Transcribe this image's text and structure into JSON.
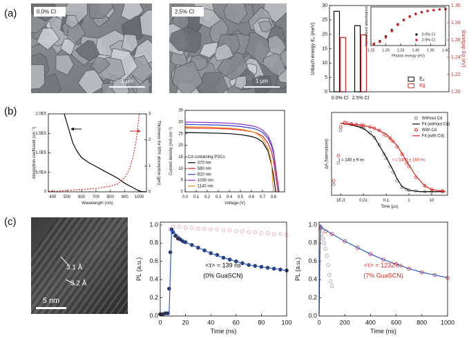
{
  "panel_labels": [
    "(a)",
    "(b)",
    "(c)"
  ],
  "images": [
    {
      "label": "0.0% Cl",
      "scale": "1 μm"
    },
    {
      "label": "2.5% Cl",
      "scale": "1 μm"
    },
    {
      "labels": [
        "3.1 Å",
        "3.2 Å"
      ],
      "scale": "5 nm"
    }
  ],
  "chart_data": [
    {
      "type": "bar",
      "categories": [
        "0.0% Cl",
        "2.5% Cl"
      ],
      "ylabel": "Urbach energy Eᵤ (meV)",
      "y2label": "Bandgap Eg (eV)",
      "y2_color": "#e0201b",
      "ylim": [
        0,
        30
      ],
      "yticks": [
        0,
        5,
        10,
        15,
        20,
        25,
        30
      ],
      "y2lim": [
        1.2,
        1.3
      ],
      "y2ticks": [
        {
          "value": 1.2,
          "label": "1.20"
        },
        1.22,
        1.24,
        1.26,
        1.28,
        {
          "value": 1.3,
          "label": "1.30"
        }
      ],
      "legend": "lower right",
      "series": [
        {
          "name": "Eᵤ",
          "color": "#000000",
          "mode": "bars",
          "values": [
            28,
            23
          ]
        },
        {
          "name": "Eg",
          "color": "#e0201b",
          "mode": "bars",
          "axis": "y2",
          "values": [
            1.263,
            1.266
          ]
        }
      ]
    },
    {
      "type": "scatter",
      "xlabel": "Photon energy (eV)",
      "ylabel": "Normalized absorbance",
      "xlim": [
        1.15,
        1.4
      ],
      "xticks": [
        1.15,
        {
          "value": 1.2,
          "label": "1.20"
        },
        1.25,
        {
          "value": 1.3,
          "label": "1.30"
        },
        1.35,
        {
          "value": 1.4,
          "label": "1.40"
        }
      ],
      "ylim": [
        0,
        1.05
      ],
      "legend": "lower right",
      "x": [
        1.16,
        1.18,
        1.2,
        1.22,
        1.24,
        1.26,
        1.28,
        1.3,
        1.32,
        1.34,
        1.36,
        1.38,
        1.4
      ],
      "series": [
        {
          "name": "0.0% Cl",
          "color": "#222222",
          "mode": "markers",
          "fill": "#222222",
          "values": [
            0.05,
            0.12,
            0.25,
            0.42,
            0.58,
            0.7,
            0.79,
            0.86,
            0.91,
            0.94,
            0.96,
            0.98,
            0.99
          ]
        },
        {
          "name": "2.5% Cl",
          "color": "#e0201b",
          "mode": "markers",
          "fill": "#e0201b",
          "values": [
            0.04,
            0.1,
            0.22,
            0.39,
            0.56,
            0.69,
            0.78,
            0.85,
            0.9,
            0.94,
            0.96,
            0.98,
            0.99
          ]
        }
      ]
    },
    {
      "type": "line",
      "xlabel": "Wavelength (nm)",
      "ylabel": "Absorption coefficient (cm⁻¹)",
      "y2label": "Thickness for 90% absorption (μm)",
      "xlim": [
        370,
        1050
      ],
      "xticks": [
        400,
        500,
        600,
        700,
        800,
        900,
        1000
      ],
      "ylim": [
        0,
        200000
      ],
      "yticks": [
        0,
        {
          "value": 50000,
          "label": "5.0E4"
        },
        {
          "value": 100000,
          "label": "1.0E5"
        },
        {
          "value": 150000,
          "label": "1.5E5"
        },
        {
          "value": 200000,
          "label": "2.0E5"
        }
      ],
      "y2lim": [
        0,
        3
      ],
      "y2ticks": [
        0,
        1,
        2,
        3
      ],
      "series": [
        {
          "color": "#000000",
          "mode": "line",
          "x": [
            480,
            500,
            520,
            540,
            560,
            580,
            600,
            650,
            700,
            750,
            800,
            850,
            900,
            950,
            980,
            1000,
            1020,
            1050
          ],
          "values": [
            200000,
            175000,
            150000,
            125000,
            110000,
            98000,
            88000,
            75000,
            65000,
            55000,
            45000,
            35000,
            22000,
            12000,
            6000,
            2000,
            500,
            0
          ]
        },
        {
          "color": "#e0201b",
          "mode": "line",
          "dash": true,
          "axis": "y2",
          "x": [
            370,
            450,
            500,
            550,
            600,
            650,
            700,
            750,
            800,
            850,
            900,
            930,
            960,
            980,
            1000
          ],
          "values": [
            0.02,
            0.03,
            0.05,
            0.07,
            0.09,
            0.11,
            0.13,
            0.17,
            0.22,
            0.3,
            0.55,
            0.85,
            1.4,
            2.0,
            3.0
          ]
        }
      ]
    },
    {
      "type": "line",
      "xlabel": "Voltage (V)",
      "ylabel": "Current density (mA cm⁻²)",
      "xlim": [
        0,
        0.9
      ],
      "xticks": [
        {
          "value": 0,
          "label": "0.0"
        },
        0.1,
        0.2,
        0.3,
        0.4,
        0.5,
        0.6,
        0.7,
        0.8
      ],
      "ylim": [
        0,
        35
      ],
      "yticks": [
        0,
        5,
        10,
        15,
        20,
        25,
        30,
        35
      ],
      "legend": "lower left",
      "legend_title": "Cd containing PSCs",
      "series": [
        {
          "name": "370 nm",
          "color": "#000000",
          "mode": "line",
          "x": [
            0,
            0.1,
            0.2,
            0.3,
            0.4,
            0.5,
            0.6,
            0.65,
            0.7,
            0.75,
            0.78,
            0.8,
            0.82
          ],
          "values": [
            25.5,
            25.4,
            25.3,
            25.2,
            25.0,
            24.6,
            23.8,
            23.0,
            21.5,
            17.5,
            12,
            7,
            0
          ]
        },
        {
          "name": "580 nm",
          "color": "#e0201b",
          "mode": "line",
          "x": [
            0,
            0.1,
            0.2,
            0.3,
            0.4,
            0.5,
            0.6,
            0.65,
            0.7,
            0.75,
            0.78,
            0.8,
            0.84
          ],
          "values": [
            27.5,
            27.4,
            27.3,
            27.2,
            27.0,
            26.6,
            25.9,
            25.2,
            24.0,
            21.0,
            17.5,
            13.5,
            0
          ]
        },
        {
          "name": "820 nm",
          "color": "#2f3fd0",
          "mode": "line",
          "x": [
            0,
            0.1,
            0.2,
            0.3,
            0.4,
            0.5,
            0.6,
            0.65,
            0.7,
            0.75,
            0.78,
            0.8,
            0.85
          ],
          "values": [
            29,
            28.9,
            28.8,
            28.7,
            28.5,
            28.1,
            27.4,
            26.8,
            25.6,
            23.0,
            20.0,
            16.5,
            0
          ]
        },
        {
          "name": "1000 nm",
          "color": "#8b2fc9",
          "mode": "line",
          "x": [
            0,
            0.1,
            0.2,
            0.3,
            0.4,
            0.5,
            0.6,
            0.65,
            0.7,
            0.75,
            0.78,
            0.8,
            0.85
          ],
          "values": [
            30,
            29.9,
            29.8,
            29.7,
            29.5,
            29.1,
            28.4,
            27.8,
            26.6,
            24,
            21,
            17.5,
            0
          ]
        },
        {
          "name": "1140 nm",
          "color": "#f08a1c",
          "mode": "line",
          "x": [
            0,
            0.1,
            0.2,
            0.3,
            0.4,
            0.5,
            0.6,
            0.65,
            0.7,
            0.75,
            0.78,
            0.8
          ],
          "values": [
            28,
            27.9,
            27.8,
            27.6,
            27.4,
            26.9,
            26,
            25,
            23,
            18.5,
            13,
            0
          ]
        }
      ]
    },
    {
      "type": "scatter",
      "xlabel": "Time (μs)",
      "ylabel": "ΔA (Normalized)",
      "xlog": true,
      "xlim": [
        0.0004,
        50
      ],
      "xticks": [
        {
          "value": 0.001,
          "label": "1E-3"
        },
        0.01,
        0.1,
        1,
        10
      ],
      "ylim": [
        -0.05,
        1.1
      ],
      "legend": "upper right",
      "annotations": [
        {
          "text": "τ = 140 ± 9 ns",
          "color": "#000000"
        },
        {
          "text": "τ = 1450 ± 160 ns",
          "color": "#e0201b"
        }
      ],
      "series": [
        {
          "name": "Without Cd",
          "color": "#777777",
          "mode": "markers",
          "x": [
            0.0005,
            0.0008,
            0.001,
            0.0015,
            0.002,
            0.003,
            0.005,
            0.008,
            0.01,
            0.02,
            0.03,
            0.05,
            0.08,
            0.1,
            0.15,
            0.2,
            0.3,
            0.5,
            0.8,
            1,
            2,
            5,
            10,
            30
          ],
          "values": [
            0.1,
            0.4,
            0.85,
            0.95,
            0.95,
            0.93,
            0.92,
            0.9,
            0.88,
            0.82,
            0.75,
            0.65,
            0.52,
            0.46,
            0.35,
            0.27,
            0.15,
            0.06,
            0.03,
            0.02,
            0.01,
            0,
            0,
            0
          ]
        },
        {
          "name": "Fit (without Cd)",
          "color": "#000000",
          "mode": "line",
          "x": [
            0.001,
            0.003,
            0.01,
            0.03,
            0.1,
            0.2,
            0.3,
            0.5,
            1,
            3,
            10,
            40
          ],
          "values": [
            0.95,
            0.93,
            0.88,
            0.76,
            0.48,
            0.3,
            0.18,
            0.07,
            0.02,
            0,
            0,
            0
          ]
        },
        {
          "name": "With Cd",
          "color": "#e0201b",
          "mode": "markers",
          "x": [
            0.0005,
            0.0008,
            0.001,
            0.0015,
            0.002,
            0.003,
            0.005,
            0.008,
            0.01,
            0.02,
            0.03,
            0.05,
            0.08,
            0.1,
            0.15,
            0.2,
            0.3,
            0.5,
            0.8,
            1,
            2,
            5,
            10,
            30
          ],
          "values": [
            0.15,
            0.5,
            0.9,
            0.96,
            0.95,
            0.94,
            0.93,
            0.92,
            0.92,
            0.9,
            0.88,
            0.85,
            0.8,
            0.78,
            0.74,
            0.7,
            0.62,
            0.52,
            0.4,
            0.35,
            0.2,
            0.08,
            0.03,
            0.01
          ]
        },
        {
          "name": "Fit (with Cd)",
          "color": "#e0201b",
          "mode": "line",
          "x": [
            0.001,
            0.01,
            0.03,
            0.1,
            0.3,
            0.5,
            1,
            2,
            5,
            10,
            40
          ],
          "values": [
            0.95,
            0.92,
            0.88,
            0.8,
            0.64,
            0.53,
            0.37,
            0.22,
            0.08,
            0.03,
            0
          ]
        }
      ]
    },
    {
      "type": "scatter",
      "xlabel": "Time (ns)",
      "ylabel": "PL (a.u.)",
      "xlim": [
        0,
        100
      ],
      "xticks": [
        0,
        20,
        40,
        60,
        80,
        100
      ],
      "ylim": [
        0,
        1.03
      ],
      "yticks": [
        {
          "value": 0,
          "label": "0.0"
        },
        0.2,
        0.4,
        0.6,
        0.8,
        {
          "value": 1,
          "label": "1.0"
        }
      ],
      "annotations": [
        {
          "text": "<τ> = 139 ns",
          "color": "#000000"
        },
        {
          "text": "(0% GuaSCN)",
          "color": "#000000"
        }
      ],
      "series": [
        {
          "color": "#e79ab5",
          "mode": "markers",
          "x": [
            8,
            10,
            15,
            20,
            25,
            30,
            35,
            40,
            45,
            50,
            55,
            60,
            65,
            70,
            75,
            80,
            85,
            90,
            95,
            100
          ],
          "values": [
            0.95,
            0.98,
            0.98,
            0.97,
            0.97,
            0.96,
            0.96,
            0.95,
            0.95,
            0.94,
            0.94,
            0.93,
            0.93,
            0.92,
            0.92,
            0.91,
            0.91,
            0.9,
            0.9,
            0.89
          ]
        },
        {
          "color": "#1f3a93",
          "mode": "markers",
          "fill": "#333333",
          "x": [
            0,
            2,
            4,
            6,
            7,
            8,
            9,
            10,
            12,
            14,
            16,
            18,
            20,
            25,
            30,
            35,
            40,
            45,
            50,
            55,
            60,
            65,
            70,
            75,
            80,
            85,
            90,
            95,
            100
          ],
          "values": [
            0.02,
            0.02,
            0.03,
            0.03,
            0.3,
            0.7,
            0.95,
            0.92,
            0.88,
            0.85,
            0.84,
            0.82,
            0.81,
            0.78,
            0.75,
            0.72,
            0.69,
            0.67,
            0.64,
            0.62,
            0.6,
            0.58,
            0.56,
            0.55,
            0.54,
            0.53,
            0.52,
            0.51,
            0.5
          ]
        },
        {
          "color": "#2a5ad8",
          "mode": "line",
          "x": [
            7,
            9,
            10,
            20,
            30,
            40,
            50,
            60,
            70,
            80,
            90,
            100
          ],
          "values": [
            0.02,
            0.95,
            0.93,
            0.81,
            0.75,
            0.69,
            0.64,
            0.6,
            0.56,
            0.54,
            0.52,
            0.5
          ]
        }
      ]
    },
    {
      "type": "scatter",
      "xlabel": "Time (ns)",
      "ylabel": "PL (a.u.)",
      "xlim": [
        0,
        1000
      ],
      "xticks": [
        0,
        200,
        400,
        600,
        800,
        1000
      ],
      "ylim": [
        0,
        1.03
      ],
      "yticks": [
        {
          "value": 0,
          "label": "0.0"
        },
        0.2,
        0.4,
        0.6,
        0.8,
        {
          "value": 1,
          "label": "1.0"
        }
      ],
      "annotations": [
        {
          "text": "<τ> = 1232 ns",
          "color": "#e0201b"
        },
        {
          "text": "(7% GuaSCN)",
          "color": "#e0201b"
        }
      ],
      "series": [
        {
          "color": "#9a9a9a",
          "mode": "markers",
          "x": [
            10,
            20,
            30,
            40,
            50,
            60,
            70,
            80,
            90,
            100
          ],
          "values": [
            0.95,
            0.9,
            0.85,
            0.8,
            0.74,
            0.66,
            0.56,
            0.45,
            0.38,
            0.33
          ]
        },
        {
          "color": "#e0201b",
          "mode": "markers",
          "x": [
            15,
            50,
            100,
            200,
            300,
            400,
            500,
            600,
            700,
            800,
            900,
            1000
          ],
          "values": [
            0.97,
            0.93,
            0.9,
            0.82,
            0.75,
            0.68,
            0.62,
            0.57,
            0.52,
            0.48,
            0.45,
            0.42
          ]
        },
        {
          "color": "#2a5ad8",
          "mode": "line",
          "x": [
            0,
            10,
            20,
            100,
            200,
            300,
            400,
            500,
            600,
            700,
            800,
            900,
            1000
          ],
          "values": [
            0.02,
            1.0,
            0.97,
            0.9,
            0.82,
            0.75,
            0.68,
            0.62,
            0.57,
            0.52,
            0.48,
            0.45,
            0.42
          ]
        }
      ]
    }
  ]
}
